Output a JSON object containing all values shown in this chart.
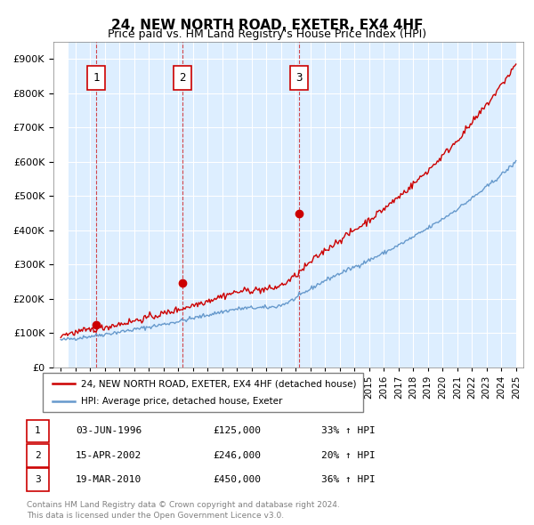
{
  "title": "24, NEW NORTH ROAD, EXETER, EX4 4HF",
  "subtitle": "Price paid vs. HM Land Registry's House Price Index (HPI)",
  "legend_line1": "24, NEW NORTH ROAD, EXETER, EX4 4HF (detached house)",
  "legend_line2": "HPI: Average price, detached house, Exeter",
  "transactions": [
    {
      "num": 1,
      "date": "03-JUN-1996",
      "price": 125000,
      "pct": "33%",
      "year": 1996.42
    },
    {
      "num": 2,
      "date": "15-APR-2002",
      "price": 246000,
      "pct": "20%",
      "year": 2002.29
    },
    {
      "num": 3,
      "date": "19-MAR-2010",
      "price": 450000,
      "pct": "36%",
      "year": 2010.21
    }
  ],
  "footnote1": "Contains HM Land Registry data © Crown copyright and database right 2024.",
  "footnote2": "This data is licensed under the Open Government Licence v3.0.",
  "hpi_color": "#6699cc",
  "price_color": "#cc0000",
  "bg_color": "#ddeeff",
  "hatch_color": "#bbccdd",
  "ylim_max": 950000,
  "ylim_min": 0,
  "xlim_min": 1993.5,
  "xlim_max": 2025.5
}
